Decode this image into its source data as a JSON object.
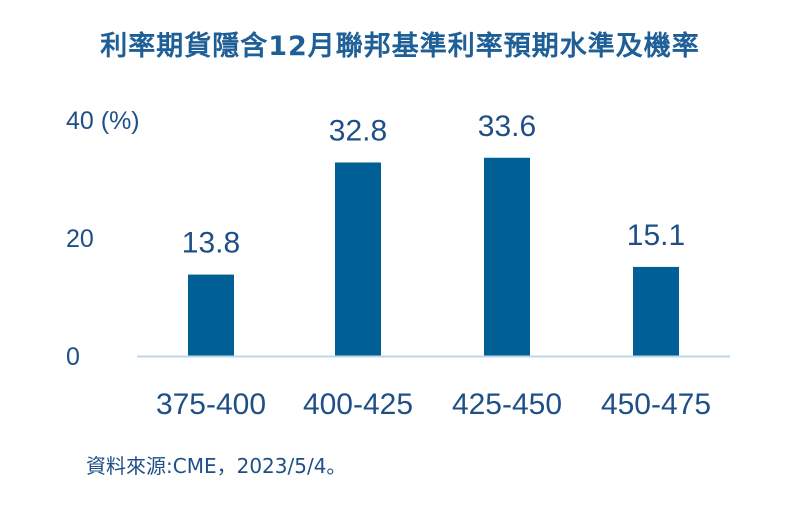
{
  "chart_data": {
    "type": "bar",
    "title": "利率期貨隱含12月聯邦基準利率預期水準及機率",
    "categories": [
      "375-400",
      "400-425",
      "425-450",
      "450-475"
    ],
    "values": [
      13.8,
      32.8,
      33.6,
      15.1
    ],
    "value_labels": [
      "13.8",
      "32.8",
      "33.6",
      "15.1"
    ],
    "yticks": [
      {
        "value": 0,
        "label": "0"
      },
      {
        "value": 20,
        "label": "20"
      },
      {
        "value": 40,
        "label": "40 (%)"
      }
    ],
    "ylim": [
      0,
      40
    ],
    "grid": false,
    "bar_color": "#006096",
    "axis_color": "#bcd6ea"
  },
  "source": "資料來源:CME，2023/5/4。"
}
